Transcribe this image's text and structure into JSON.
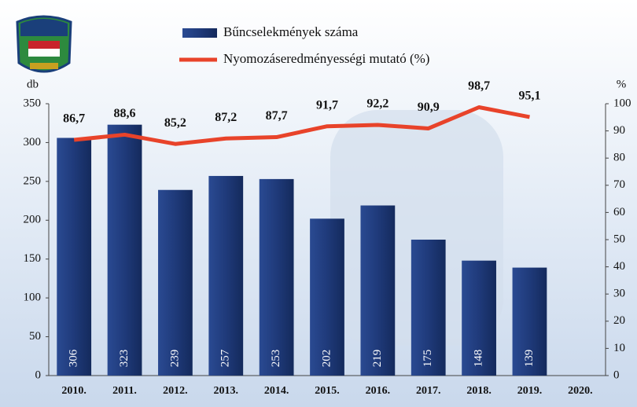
{
  "chart_data": {
    "type": "bar-line",
    "categories": [
      "2010.",
      "2011.",
      "2012.",
      "2013.",
      "2014.",
      "2015.",
      "2016.",
      "2017.",
      "2018.",
      "2019.",
      "2020."
    ],
    "series": [
      {
        "name": "Bűncselekmények száma",
        "type": "bar",
        "color": "#1f3a7a",
        "values": [
          306,
          323,
          239,
          257,
          253,
          202,
          219,
          175,
          148,
          139,
          null
        ]
      },
      {
        "name": "Nyomozáseredményességi mutató (%)",
        "type": "line",
        "color": "#e8432a",
        "axis": "y2",
        "values": [
          86.7,
          88.6,
          85.2,
          87.2,
          87.7,
          91.7,
          92.2,
          90.9,
          98.7,
          95.1,
          null
        ],
        "value_labels": [
          "86,7",
          "88,6",
          "85,2",
          "87,2",
          "87,7",
          "91,7",
          "92,2",
          "90,9",
          "98,7",
          "95,1",
          null
        ]
      }
    ],
    "ylabel": "db",
    "y2label": "%",
    "ylim": [
      0,
      350
    ],
    "yticks": [
      0,
      50,
      100,
      150,
      200,
      250,
      300,
      350
    ],
    "y2lim": [
      0,
      100
    ],
    "y2ticks": [
      0,
      10,
      20,
      30,
      40,
      50,
      60,
      70,
      80,
      90,
      100
    ],
    "legend": "top"
  }
}
